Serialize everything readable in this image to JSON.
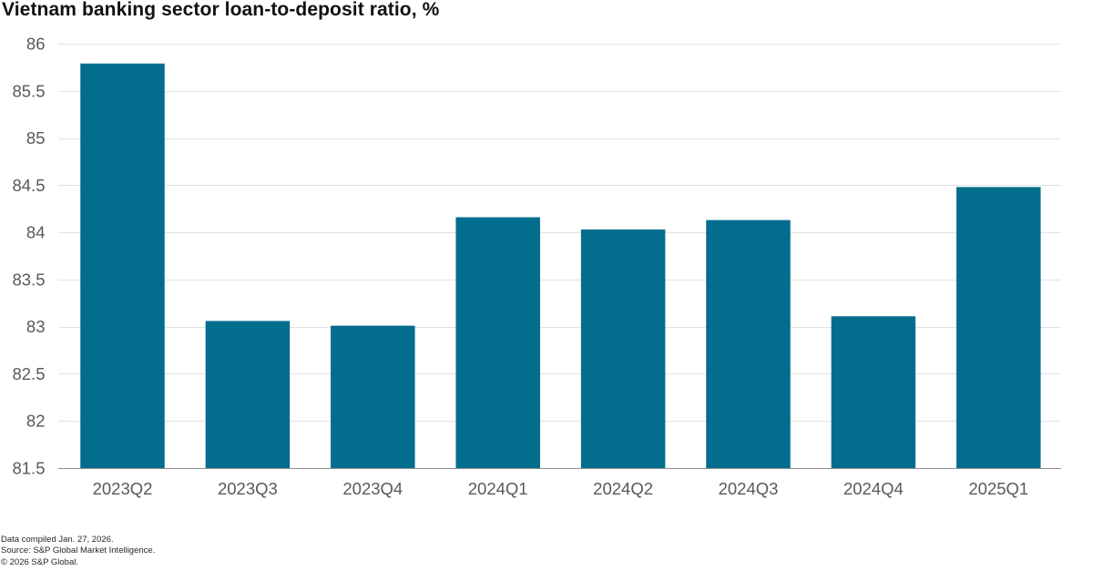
{
  "title": "Vietnam banking sector loan-to-deposit ratio, %",
  "footer": {
    "compiled": "Data compiled Jan. 27, 2026.",
    "source": "Source: S&P Global Market Intelligence.",
    "copyright": "© 2026 S&P Global."
  },
  "colors": {
    "bar": "#036d8e",
    "gridline": "#e2e2e2",
    "axis_line": "#8e8e8e",
    "tick_label": "#595959",
    "title": "#111111",
    "footer_text": "#272727"
  },
  "chart_data": {
    "type": "bar",
    "title": "Vietnam banking sector loan-to-deposit ratio, %",
    "categories": [
      "2023Q2",
      "2023Q3",
      "2023Q4",
      "2024Q1",
      "2024Q2",
      "2024Q3",
      "2024Q4",
      "2025Q1"
    ],
    "values": [
      85.79,
      83.06,
      83.01,
      84.16,
      84.03,
      84.13,
      83.11,
      84.48
    ],
    "xlabel": "",
    "ylabel": "",
    "ylim": [
      81.5,
      86
    ],
    "ytick_step": 0.5,
    "yticks": [
      81.5,
      82,
      82.5,
      83,
      83.5,
      84,
      84.5,
      85,
      85.5,
      86
    ],
    "grid": true,
    "legend": false
  }
}
